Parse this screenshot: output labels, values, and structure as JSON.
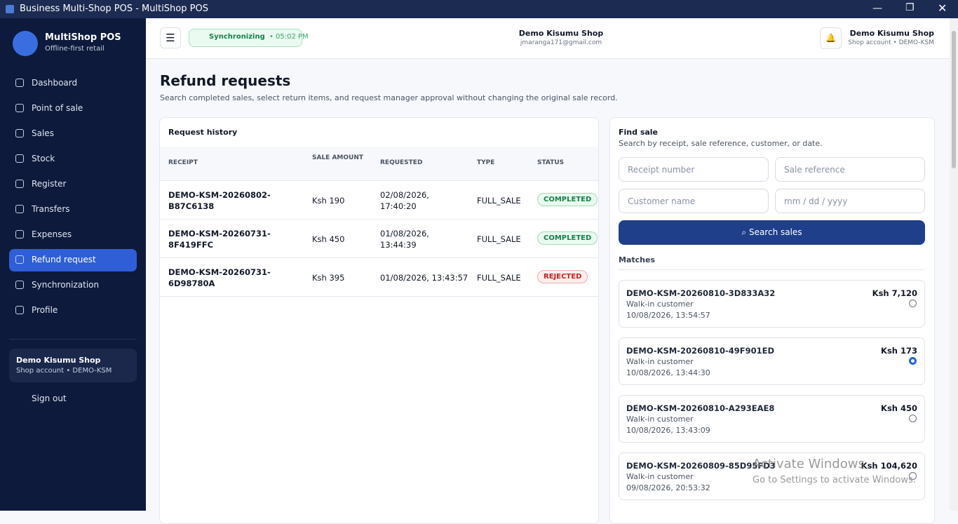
{
  "window": {
    "title": "Business Multi-Shop POS - MultiShop POS"
  },
  "sidebar": {
    "brand": "MultiShop POS",
    "tagline": "Offline-first retail",
    "nav": [
      {
        "label": "Dashboard",
        "active": false
      },
      {
        "label": "Point of sale",
        "active": false
      },
      {
        "label": "Sales",
        "active": false
      },
      {
        "label": "Stock",
        "active": false
      },
      {
        "label": "Register",
        "active": false
      },
      {
        "label": "Transfers",
        "active": false
      },
      {
        "label": "Expenses",
        "active": false
      },
      {
        "label": "Refund request",
        "active": true
      },
      {
        "label": "Synchronization",
        "active": false
      },
      {
        "label": "Profile",
        "active": false
      }
    ],
    "account": {
      "shop": "Demo Kisumu Shop",
      "detail": "Shop account • DEMO-KSM"
    },
    "sign_out": "Sign out"
  },
  "topbar": {
    "sync_status": "Synchronizing",
    "sync_time": "• 05:02 PM",
    "shop": "Demo Kisumu Shop",
    "email": "jmaranga171@gmail.com",
    "account_name": "Demo Kisumu Shop",
    "account_detail": "Shop account • DEMO-KSM"
  },
  "page": {
    "title": "Refund requests",
    "subtitle": "Search completed sales, select return items, and request manager approval without changing the original sale record."
  },
  "history": {
    "title": "Request history",
    "columns": [
      "RECEIPT",
      "SALE AMOUNT",
      "REQUESTED",
      "TYPE",
      "STATUS"
    ],
    "rows": [
      {
        "cells": [
          "DEMO-KSM-20260802-B87C6138",
          "Ksh 190",
          "02/08/2026, 17:40:20",
          "FULL_SALE",
          "COMPLETED"
        ],
        "color": "green"
      },
      {
        "cells": [
          "DEMO-KSM-20260731-8F419FFC",
          "Ksh 450",
          "01/08/2026, 13:44:39",
          "FULL_SALE",
          "COMPLETED"
        ],
        "color": "green"
      },
      {
        "cells": [
          "DEMO-KSM-20260731-6D98780A",
          "Ksh 395",
          "01/08/2026, 13:43:57",
          "FULL_SALE",
          "REJECTED"
        ],
        "color": "red"
      }
    ]
  },
  "find": {
    "title": "Find sale",
    "subtitle": "Search by receipt, sale reference, customer, or date.",
    "fields": [
      "Receipt number",
      "Sale reference",
      "Customer name",
      "mm / dd / yyyy"
    ],
    "button": "Search sales",
    "matches_title": "Matches",
    "matches": [
      {
        "receipt": "DEMO-KSM-20260810-3D833A32",
        "customer": "Walk-in customer",
        "date": "10/08/2026, 13:54:57",
        "amount": "Ksh 7,120",
        "selected": false
      },
      {
        "receipt": "DEMO-KSM-20260810-49F901ED",
        "customer": "Walk-in customer",
        "date": "10/08/2026, 13:44:30",
        "amount": "Ksh 173",
        "selected": true
      },
      {
        "receipt": "DEMO-KSM-20260810-A293EAE8",
        "customer": "Walk-in customer",
        "date": "10/08/2026, 13:43:09",
        "amount": "Ksh 450",
        "selected": false
      },
      {
        "receipt": "DEMO-KSM-20260809-85D95FD3",
        "customer": "Walk-in customer",
        "date": "09/08/2026, 20:53:32",
        "amount": "Ksh 104,620",
        "selected": false
      }
    ]
  },
  "watermark": {
    "title": "Activate Windows",
    "subtitle": "Go to Settings to activate Windows."
  }
}
